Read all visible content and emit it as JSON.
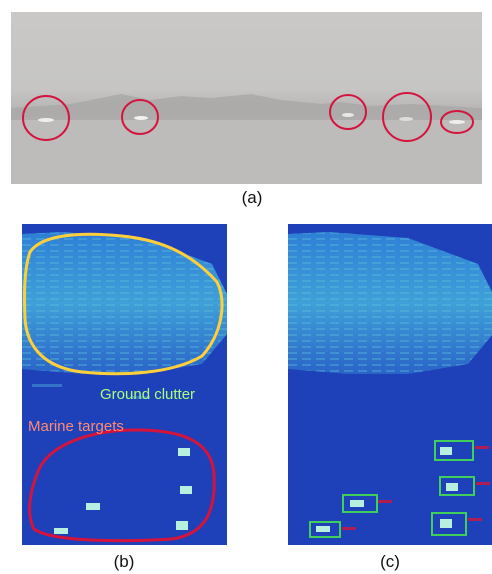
{
  "panels": {
    "a": {
      "caption": "(a)"
    },
    "b": {
      "caption": "(b)",
      "ground_label": "Ground clutter",
      "marine_label": "Marine targets"
    },
    "c": {
      "caption": "(c)"
    }
  },
  "colors": {
    "sky": "#c9c8c6",
    "radar_bg": "#1e40b8",
    "ground_outline": "#ffcf3a",
    "marine_outline": "#d4143c",
    "ship_circle": "#d4143c",
    "detection_box": "#3fcf5a"
  }
}
